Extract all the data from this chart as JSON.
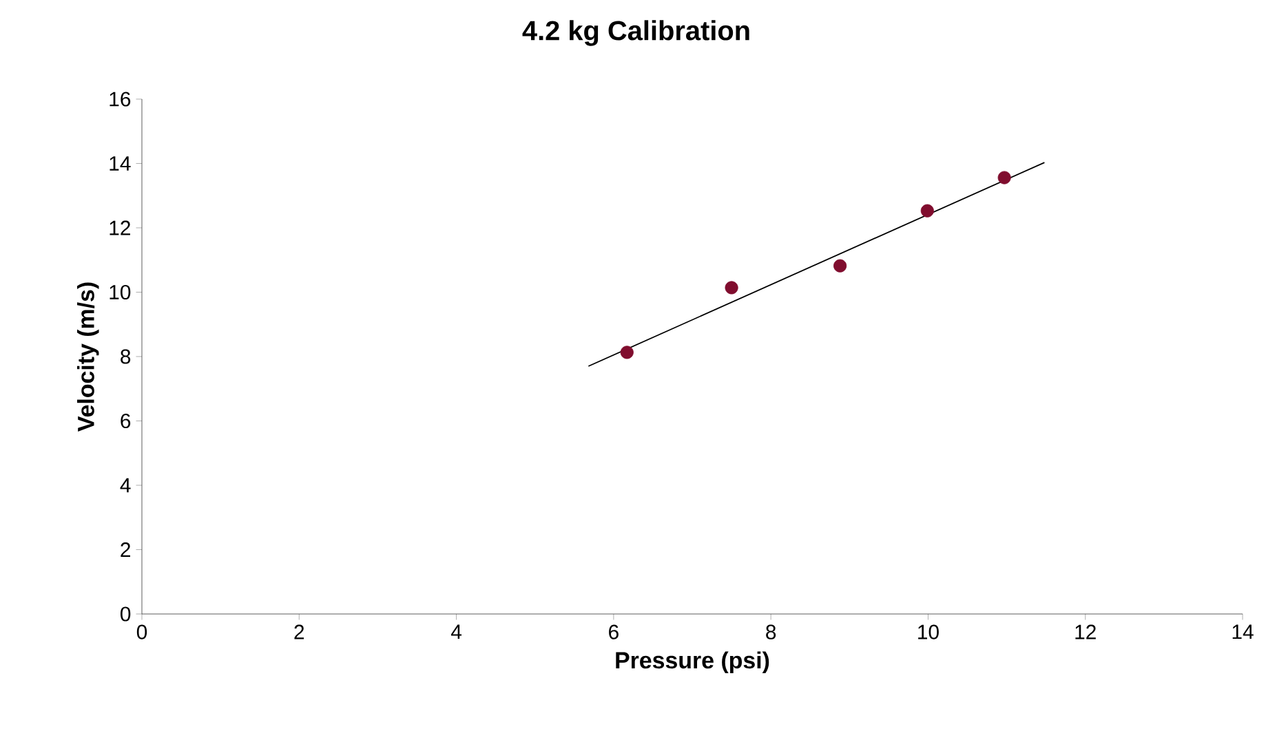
{
  "chart_data": {
    "type": "scatter",
    "title": "4.2 kg Calibration",
    "xlabel": "Pressure (psi)",
    "ylabel": "Velocity (m/s)",
    "xlim": [
      0,
      14
    ],
    "ylim": [
      0,
      16
    ],
    "xticks": [
      0,
      2,
      4,
      6,
      8,
      10,
      12,
      14
    ],
    "yticks": [
      0,
      2,
      4,
      6,
      8,
      10,
      12,
      14,
      16
    ],
    "grid": false,
    "legend": false,
    "series": [
      {
        "marker": "circle",
        "color": "#800d2e",
        "x": [
          6.17,
          7.5,
          8.88,
          9.99,
          10.97
        ],
        "values": [
          8.13,
          10.14,
          10.82,
          12.53,
          13.56
        ]
      },
      {
        "type": "line",
        "color": "#000000",
        "marker": "none",
        "line_style": "solid",
        "x": [
          5.68,
          11.48
        ],
        "values": [
          7.7,
          14.03
        ]
      }
    ]
  }
}
